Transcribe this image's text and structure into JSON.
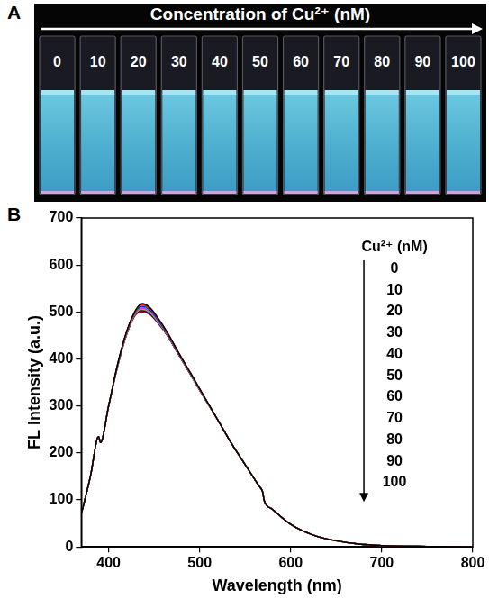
{
  "panel_a": {
    "letter": "A",
    "title": "Concentration of Cu²⁺ (nM)",
    "labels": [
      "0",
      "10",
      "20",
      "30",
      "40",
      "50",
      "60",
      "70",
      "80",
      "90",
      "100"
    ]
  },
  "chart_data": {
    "panel_letter": "B",
    "type": "line",
    "x_label": "Wavelength (nm)",
    "y_label": "FL Intensity (a.u.)",
    "legend_title": "Cu²⁺ (nM)",
    "legend": "top right",
    "grid": false,
    "xlim": [
      370,
      800
    ],
    "xticks": [
      400,
      500,
      600,
      700,
      800
    ],
    "ylim": [
      0,
      700
    ],
    "yticks": [
      0,
      100,
      200,
      300,
      400,
      500,
      600,
      700
    ],
    "x": [
      370,
      380,
      389,
      391,
      400,
      410,
      420,
      430,
      437,
      445,
      455,
      465,
      475,
      490,
      505,
      520,
      535,
      550,
      565,
      569,
      571,
      580,
      600,
      625,
      650,
      675,
      700,
      750,
      800
    ],
    "series": [
      {
        "name": "0",
        "color": "#000000",
        "values": [
          70,
          150,
          235,
          222,
          300,
          390,
          460,
          505,
          518,
          510,
          485,
          455,
          420,
          370,
          320,
          270,
          220,
          175,
          130,
          118,
          98,
          80,
          48,
          25,
          13,
          6,
          3,
          1,
          0
        ]
      },
      {
        "name": "10",
        "color": "#ff0000",
        "values": [
          70,
          150,
          235,
          222,
          300,
          390,
          459,
          504,
          516,
          508,
          484,
          454,
          419,
          370,
          320,
          270,
          220,
          175,
          130,
          118,
          98,
          80,
          48,
          25,
          13,
          6,
          3,
          1,
          0
        ]
      },
      {
        "name": "20",
        "color": "#00c000",
        "values": [
          70,
          150,
          235,
          222,
          300,
          389,
          458,
          503,
          514,
          507,
          483,
          453,
          419,
          369,
          319,
          270,
          220,
          175,
          130,
          118,
          98,
          80,
          48,
          25,
          13,
          6,
          3,
          1,
          0
        ]
      },
      {
        "name": "30",
        "color": "#0000ff",
        "values": [
          70,
          150,
          235,
          222,
          300,
          388,
          458,
          502,
          512,
          505,
          481,
          452,
          418,
          369,
          319,
          270,
          220,
          175,
          130,
          118,
          98,
          80,
          48,
          25,
          13,
          6,
          3,
          1,
          0
        ]
      },
      {
        "name": "40",
        "color": "#00c8c8",
        "values": [
          70,
          150,
          235,
          222,
          300,
          388,
          457,
          501,
          510,
          503,
          480,
          452,
          418,
          368,
          319,
          270,
          220,
          175,
          130,
          118,
          98,
          80,
          48,
          25,
          13,
          6,
          3,
          1,
          0
        ]
      },
      {
        "name": "50",
        "color": "#ff00ff",
        "values": [
          70,
          150,
          235,
          222,
          300,
          387,
          456,
          500,
          508,
          501,
          479,
          451,
          417,
          368,
          318,
          270,
          220,
          175,
          130,
          118,
          98,
          80,
          48,
          25,
          13,
          6,
          3,
          1,
          0
        ]
      },
      {
        "name": "60",
        "color": "#c8c800",
        "values": [
          70,
          150,
          235,
          222,
          300,
          387,
          456,
          499,
          507,
          500,
          478,
          450,
          417,
          368,
          318,
          270,
          220,
          175,
          130,
          118,
          98,
          80,
          48,
          25,
          13,
          6,
          3,
          1,
          0
        ]
      },
      {
        "name": "70",
        "color": "#808000",
        "values": [
          70,
          150,
          235,
          222,
          300,
          386,
          455,
          498,
          505,
          499,
          477,
          450,
          416,
          367,
          318,
          270,
          220,
          175,
          130,
          118,
          98,
          80,
          48,
          25,
          13,
          6,
          3,
          1,
          0
        ]
      },
      {
        "name": "80",
        "color": "#000080",
        "values": [
          70,
          150,
          235,
          222,
          300,
          386,
          454,
          497,
          503,
          497,
          476,
          449,
          416,
          367,
          318,
          270,
          220,
          175,
          130,
          118,
          98,
          80,
          48,
          25,
          13,
          6,
          3,
          1,
          0
        ]
      },
      {
        "name": "90",
        "color": "#8000a0",
        "values": [
          70,
          150,
          235,
          222,
          300,
          385,
          454,
          496,
          502,
          496,
          475,
          448,
          415,
          367,
          317,
          270,
          220,
          175,
          130,
          118,
          98,
          80,
          48,
          25,
          13,
          6,
          3,
          1,
          0
        ]
      },
      {
        "name": "100",
        "color": "#b00020",
        "values": [
          70,
          150,
          235,
          222,
          300,
          385,
          453,
          495,
          500,
          495,
          474,
          448,
          415,
          366,
          317,
          270,
          220,
          175,
          130,
          118,
          98,
          80,
          48,
          25,
          13,
          6,
          3,
          1,
          0
        ]
      }
    ]
  }
}
